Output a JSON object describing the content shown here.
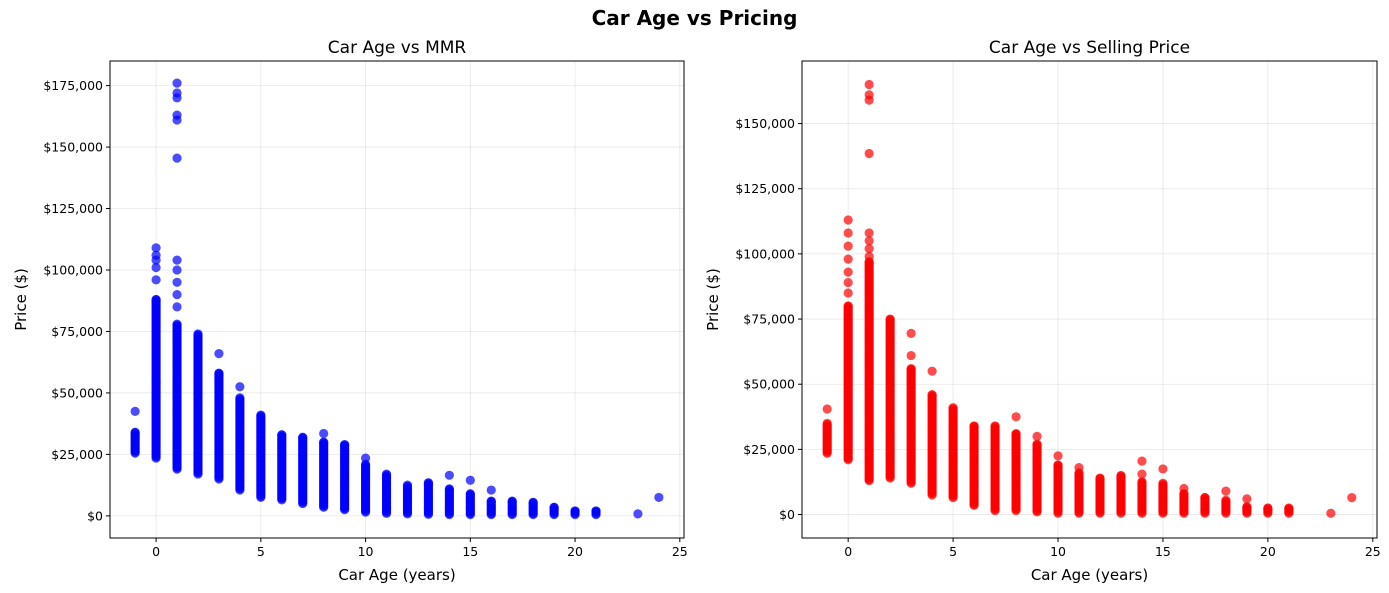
{
  "figure": {
    "title": "Car Age vs Pricing"
  },
  "chart_data": [
    {
      "type": "scatter",
      "title": "Car Age vs MMR",
      "xlabel": "Car Age (years)",
      "ylabel": "Price ($)",
      "color": "#0000ff",
      "xlim": [
        -2.2,
        25.2
      ],
      "ylim": [
        -9000,
        185000
      ],
      "xticks": [
        0,
        5,
        10,
        15,
        20,
        25
      ],
      "yticks": [
        0,
        25000,
        50000,
        75000,
        100000,
        125000,
        150000,
        175000
      ],
      "grid": true,
      "columns": [
        {
          "x": -1,
          "min": 25500,
          "max": 34000
        },
        {
          "x": 0,
          "min": 23500,
          "max": 88000
        },
        {
          "x": 1,
          "min": 19000,
          "max": 78000
        },
        {
          "x": 2,
          "min": 17000,
          "max": 74000
        },
        {
          "x": 3,
          "min": 15000,
          "max": 58000
        },
        {
          "x": 4,
          "min": 10500,
          "max": 48000
        },
        {
          "x": 5,
          "min": 7500,
          "max": 41000
        },
        {
          "x": 6,
          "min": 6500,
          "max": 33000
        },
        {
          "x": 7,
          "min": 5000,
          "max": 32000
        },
        {
          "x": 8,
          "min": 3500,
          "max": 30000
        },
        {
          "x": 9,
          "min": 2500,
          "max": 29000
        },
        {
          "x": 10,
          "min": 1500,
          "max": 21000
        },
        {
          "x": 11,
          "min": 1000,
          "max": 17000
        },
        {
          "x": 12,
          "min": 800,
          "max": 12500
        },
        {
          "x": 13,
          "min": 600,
          "max": 13500
        },
        {
          "x": 14,
          "min": 500,
          "max": 11000
        },
        {
          "x": 15,
          "min": 500,
          "max": 9000
        },
        {
          "x": 16,
          "min": 500,
          "max": 6000
        },
        {
          "x": 17,
          "min": 500,
          "max": 6000
        },
        {
          "x": 18,
          "min": 500,
          "max": 5500
        },
        {
          "x": 19,
          "min": 500,
          "max": 3500
        },
        {
          "x": 20,
          "min": 500,
          "max": 2000
        },
        {
          "x": 21,
          "min": 500,
          "max": 2000
        }
      ],
      "points": [
        {
          "x": -1,
          "y": 42500
        },
        {
          "x": 0,
          "y": 109000
        },
        {
          "x": 0,
          "y": 106000
        },
        {
          "x": 0,
          "y": 104000
        },
        {
          "x": 0,
          "y": 101000
        },
        {
          "x": 0,
          "y": 96000
        },
        {
          "x": 1,
          "y": 176000
        },
        {
          "x": 1,
          "y": 172000
        },
        {
          "x": 1,
          "y": 170000
        },
        {
          "x": 1,
          "y": 163000
        },
        {
          "x": 1,
          "y": 161000
        },
        {
          "x": 1,
          "y": 145500
        },
        {
          "x": 1,
          "y": 104000
        },
        {
          "x": 1,
          "y": 100000
        },
        {
          "x": 1,
          "y": 95000
        },
        {
          "x": 1,
          "y": 90000
        },
        {
          "x": 1,
          "y": 85000
        },
        {
          "x": 3,
          "y": 66000
        },
        {
          "x": 4,
          "y": 52500
        },
        {
          "x": 8,
          "y": 33500
        },
        {
          "x": 10,
          "y": 23500
        },
        {
          "x": 14,
          "y": 16500
        },
        {
          "x": 15,
          "y": 14500
        },
        {
          "x": 16,
          "y": 10500
        },
        {
          "x": 23,
          "y": 800
        },
        {
          "x": 24,
          "y": 7500
        }
      ]
    },
    {
      "type": "scatter",
      "title": "Car Age vs Selling Price",
      "xlabel": "Car Age (years)",
      "ylabel": "Price ($)",
      "color": "#ff0000",
      "xlim": [
        -2.2,
        25.2
      ],
      "ylim": [
        -9000,
        174000
      ],
      "xticks": [
        0,
        5,
        10,
        15,
        20,
        25
      ],
      "yticks": [
        0,
        25000,
        50000,
        75000,
        100000,
        125000,
        150000
      ],
      "grid": true,
      "columns": [
        {
          "x": -1,
          "min": 23500,
          "max": 35000
        },
        {
          "x": 0,
          "min": 21000,
          "max": 80000
        },
        {
          "x": 1,
          "min": 13000,
          "max": 97000
        },
        {
          "x": 2,
          "min": 14000,
          "max": 75000
        },
        {
          "x": 3,
          "min": 12000,
          "max": 56000
        },
        {
          "x": 4,
          "min": 7500,
          "max": 46000
        },
        {
          "x": 5,
          "min": 6500,
          "max": 41000
        },
        {
          "x": 6,
          "min": 3500,
          "max": 34000
        },
        {
          "x": 7,
          "min": 1500,
          "max": 34000
        },
        {
          "x": 8,
          "min": 1500,
          "max": 31000
        },
        {
          "x": 9,
          "min": 1000,
          "max": 27000
        },
        {
          "x": 10,
          "min": 500,
          "max": 19000
        },
        {
          "x": 11,
          "min": 500,
          "max": 16000
        },
        {
          "x": 12,
          "min": 500,
          "max": 14000
        },
        {
          "x": 13,
          "min": 500,
          "max": 15000
        },
        {
          "x": 14,
          "min": 500,
          "max": 12500
        },
        {
          "x": 15,
          "min": 500,
          "max": 12000
        },
        {
          "x": 16,
          "min": 500,
          "max": 8000
        },
        {
          "x": 17,
          "min": 500,
          "max": 6500
        },
        {
          "x": 18,
          "min": 500,
          "max": 5500
        },
        {
          "x": 19,
          "min": 500,
          "max": 3000
        },
        {
          "x": 20,
          "min": 500,
          "max": 2500
        },
        {
          "x": 21,
          "min": 500,
          "max": 2500
        }
      ],
      "points": [
        {
          "x": -1,
          "y": 40500
        },
        {
          "x": 0,
          "y": 113000
        },
        {
          "x": 0,
          "y": 108000
        },
        {
          "x": 0,
          "y": 103000
        },
        {
          "x": 0,
          "y": 98000
        },
        {
          "x": 0,
          "y": 93000
        },
        {
          "x": 0,
          "y": 89000
        },
        {
          "x": 0,
          "y": 85000
        },
        {
          "x": 1,
          "y": 165000
        },
        {
          "x": 1,
          "y": 161000
        },
        {
          "x": 1,
          "y": 159000
        },
        {
          "x": 1,
          "y": 138500
        },
        {
          "x": 1,
          "y": 108000
        },
        {
          "x": 1,
          "y": 105000
        },
        {
          "x": 1,
          "y": 102000
        },
        {
          "x": 1,
          "y": 99000
        },
        {
          "x": 3,
          "y": 69500
        },
        {
          "x": 3,
          "y": 61000
        },
        {
          "x": 4,
          "y": 55000
        },
        {
          "x": 8,
          "y": 37500
        },
        {
          "x": 9,
          "y": 30000
        },
        {
          "x": 10,
          "y": 22500
        },
        {
          "x": 11,
          "y": 18000
        },
        {
          "x": 14,
          "y": 20500
        },
        {
          "x": 14,
          "y": 15500
        },
        {
          "x": 15,
          "y": 17500
        },
        {
          "x": 16,
          "y": 10000
        },
        {
          "x": 18,
          "y": 9000
        },
        {
          "x": 19,
          "y": 6000
        },
        {
          "x": 23,
          "y": 500
        },
        {
          "x": 24,
          "y": 6500
        }
      ]
    }
  ]
}
